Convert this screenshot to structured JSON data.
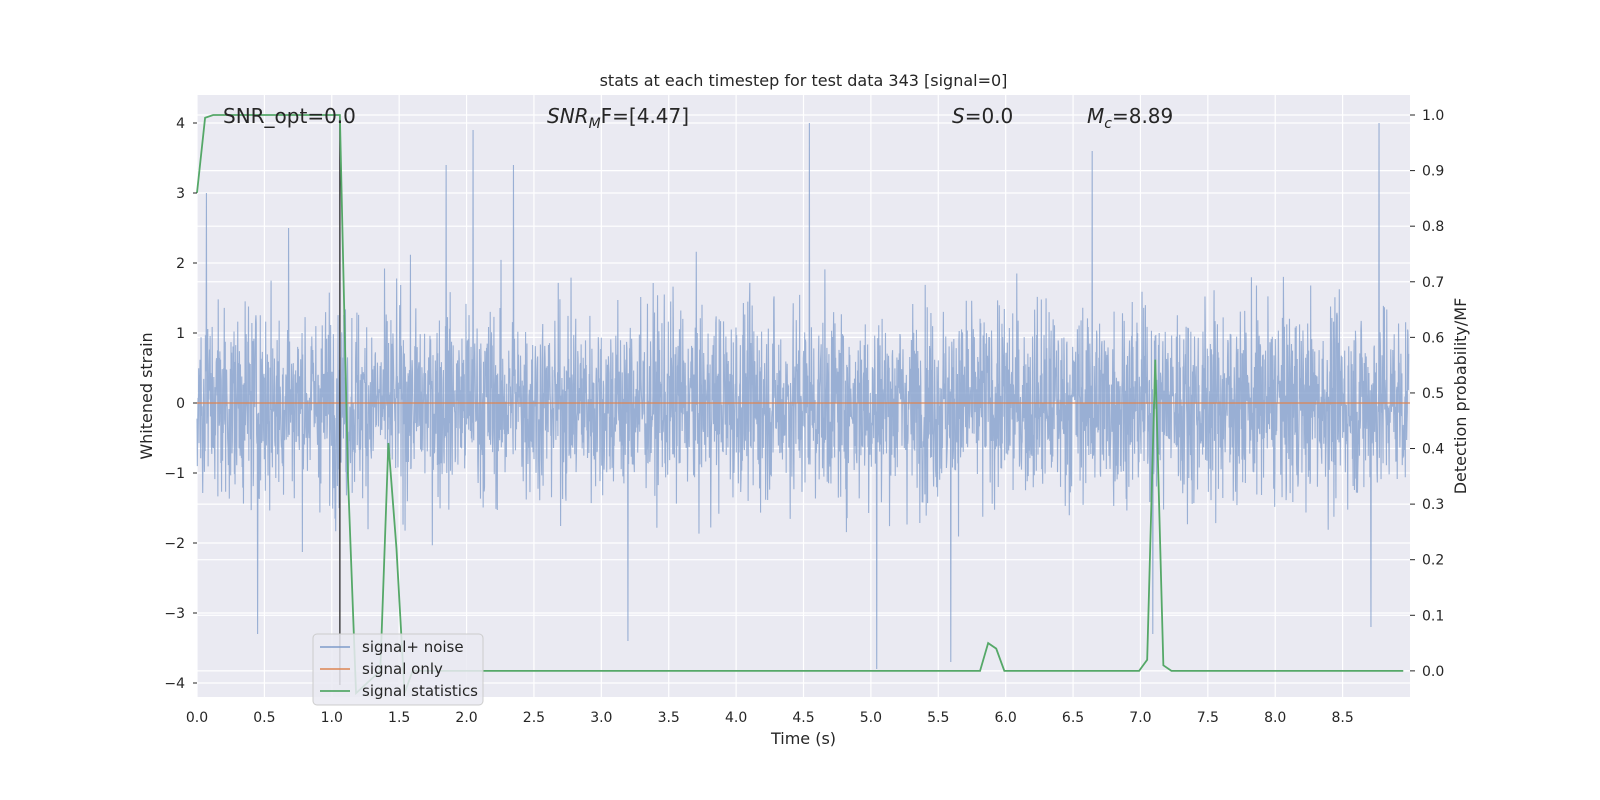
{
  "chart_data": {
    "type": "line",
    "title": "stats at each timestep for test data 343 [signal=0]",
    "xlabel": "Time (s)",
    "ylabel_left": "Whitened strain",
    "ylabel_right": "Detection probability/MF",
    "xlim": [
      0.0,
      9.0
    ],
    "ylim_left": [
      -4.2,
      4.4
    ],
    "ylim_right": [
      -0.047,
      1.036
    ],
    "x_ticks": [
      "0.0",
      "0.5",
      "1.0",
      "1.5",
      "2.0",
      "2.5",
      "3.0",
      "3.5",
      "4.0",
      "4.5",
      "5.0",
      "5.5",
      "6.0",
      "6.5",
      "7.0",
      "7.5",
      "8.0",
      "8.5"
    ],
    "y_ticks_left": [
      "4",
      "3",
      "2",
      "1",
      "0",
      "−1",
      "−2",
      "−3",
      "−4"
    ],
    "y_ticks_right": [
      "1.0",
      "0.9",
      "0.8",
      "0.7",
      "0.6",
      "0.5",
      "0.4",
      "0.3",
      "0.2",
      "0.1",
      "0.0"
    ],
    "grid": true,
    "annotations": {
      "snr_opt": "SNR_opt=0.0",
      "snr_mf_sym": "SNR",
      "snr_mf_sub": "M",
      "snr_mf_rest": "F=[4.47]",
      "s_sym": "S",
      "s_rest": "=0.0",
      "mc_sym": "M",
      "mc_sub": "c",
      "mc_rest": "=8.89"
    },
    "legend": {
      "position": "lower-left",
      "entries": [
        "signal+ noise",
        "signal only",
        "signal statistics"
      ]
    },
    "colors": {
      "noise": "#7e9bca",
      "signal_only": "#dd8452",
      "statistics": "#55a868",
      "background": "#eaeaf2",
      "grid": "#ffffff",
      "marker_line": "#3a3a3a"
    },
    "series": [
      {
        "name": "signal+ noise",
        "axis": "left",
        "description_of_values": "whitened strain noise, roughly Gaussian, peaks between -3.8 and 4.0",
        "peak_values": [
          {
            "x": 0.07,
            "y": 3.0
          },
          {
            "x": 0.45,
            "y": -3.3
          },
          {
            "x": 0.68,
            "y": 2.5
          },
          {
            "x": 1.85,
            "y": 3.4
          },
          {
            "x": 2.05,
            "y": 3.9
          },
          {
            "x": 2.35,
            "y": 3.4
          },
          {
            "x": 3.2,
            "y": -3.4
          },
          {
            "x": 4.55,
            "y": 4.0
          },
          {
            "x": 5.05,
            "y": -3.8
          },
          {
            "x": 5.6,
            "y": -3.7
          },
          {
            "x": 6.65,
            "y": 3.6
          },
          {
            "x": 7.1,
            "y": -3.3
          },
          {
            "x": 8.78,
            "y": 4.0
          },
          {
            "x": 8.72,
            "y": -3.2
          }
        ]
      },
      {
        "name": "signal only",
        "axis": "left",
        "x": [
          0.0,
          9.0
        ],
        "y": [
          0.0,
          0.0
        ]
      },
      {
        "name": "signal statistics",
        "axis": "right",
        "x": [
          0.0,
          0.06,
          0.12,
          0.18,
          1.0,
          1.06,
          1.12,
          1.18,
          1.36,
          1.42,
          1.48,
          1.54,
          1.6,
          1.66,
          5.75,
          5.81,
          5.87,
          5.93,
          5.99,
          6.05,
          6.93,
          6.99,
          7.05,
          7.11,
          7.17,
          7.23,
          7.29,
          8.95
        ],
        "y": [
          0.86,
          0.995,
          1.0,
          1.0,
          1.0,
          1.0,
          0.35,
          -0.04,
          0.0,
          0.41,
          0.22,
          -0.04,
          0.0,
          0.0,
          0.0,
          0.0,
          0.05,
          0.04,
          0.0,
          0.0,
          0.0,
          0.0,
          0.02,
          0.56,
          0.01,
          0.0,
          0.0,
          0.0
        ]
      }
    ],
    "vertical_marker": {
      "x": 1.06
    }
  }
}
